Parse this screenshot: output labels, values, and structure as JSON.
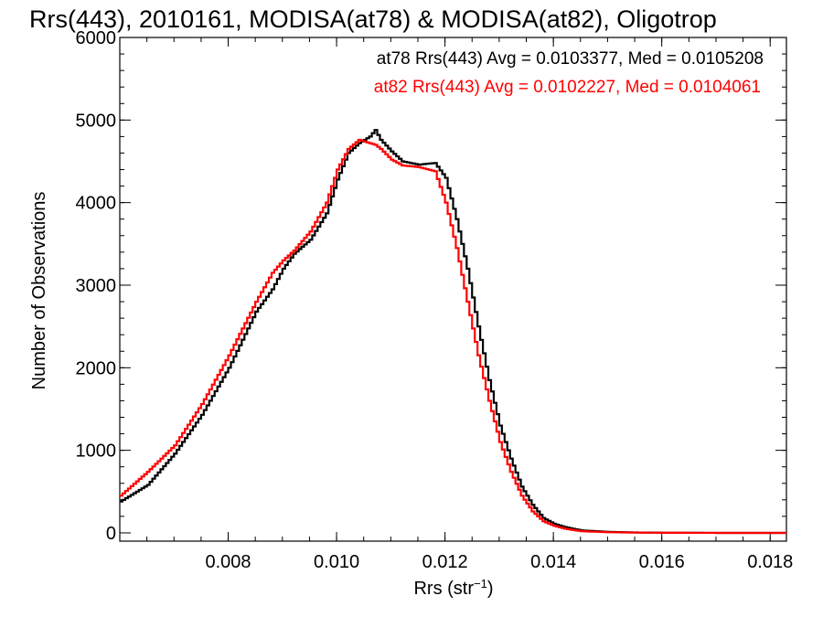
{
  "chart_data": {
    "type": "line",
    "title": "Rrs(443), 2010161, MODISA(at78) & MODISA(at82), Oligotrop",
    "xlabel": "Rrs (str",
    "xlabel_sup": "−1",
    "xlabel_close": ")",
    "ylabel": "Number of Observations",
    "xlim": [
      0.006,
      0.0183
    ],
    "ylim": [
      -100,
      6000
    ],
    "x_ticks": [
      0.008,
      0.01,
      0.012,
      0.014,
      0.016,
      0.018
    ],
    "x_tick_labels": [
      "0.008",
      "0.010",
      "0.012",
      "0.014",
      "0.016",
      "0.018"
    ],
    "y_ticks": [
      0,
      1000,
      2000,
      3000,
      4000,
      5000,
      6000
    ],
    "y_tick_labels": [
      "0",
      "1000",
      "2000",
      "3000",
      "4000",
      "5000",
      "6000"
    ],
    "grid": false,
    "legend_placement": "top-right",
    "annotations": [
      "at78 Rrs(443) Avg = 0.0103377, Med = 0.0105208",
      "at82 Rrs(443) Avg = 0.0102227, Med = 0.0104061"
    ],
    "series": [
      {
        "color": "#000000",
        "x": [
          0.006,
          0.0065,
          0.007,
          0.0075,
          0.008,
          0.0085,
          0.0088,
          0.009,
          0.0092,
          0.0095,
          0.0098,
          0.01,
          0.0102,
          0.0104,
          0.0106,
          0.0107,
          0.0108,
          0.011,
          0.0112,
          0.0115,
          0.0118,
          0.012,
          0.0122,
          0.0124,
          0.0126,
          0.0128,
          0.013,
          0.0132,
          0.0134,
          0.0136,
          0.0138,
          0.014,
          0.0142,
          0.0145,
          0.015,
          0.0155,
          0.016,
          0.017,
          0.018,
          0.0183
        ],
        "y": [
          380,
          580,
          960,
          1430,
          2000,
          2680,
          2950,
          3200,
          3380,
          3550,
          3870,
          4280,
          4600,
          4720,
          4800,
          4880,
          4760,
          4620,
          4500,
          4460,
          4480,
          4300,
          3800,
          3200,
          2500,
          1850,
          1300,
          900,
          560,
          340,
          180,
          110,
          70,
          30,
          12,
          5,
          2,
          0,
          0,
          0
        ]
      },
      {
        "color": "#ff0000",
        "x": [
          0.006,
          0.0065,
          0.007,
          0.0075,
          0.008,
          0.0085,
          0.0088,
          0.009,
          0.0092,
          0.0095,
          0.0098,
          0.01,
          0.0102,
          0.0104,
          0.0106,
          0.0107,
          0.0108,
          0.011,
          0.0112,
          0.0115,
          0.0118,
          0.012,
          0.0122,
          0.0124,
          0.0126,
          0.0128,
          0.013,
          0.0132,
          0.0134,
          0.0136,
          0.0138,
          0.014,
          0.0142,
          0.0145,
          0.015,
          0.0155,
          0.016,
          0.017,
          0.018,
          0.0183
        ],
        "y": [
          450,
          740,
          1060,
          1560,
          2150,
          2800,
          3150,
          3300,
          3420,
          3650,
          4000,
          4400,
          4650,
          4760,
          4720,
          4700,
          4650,
          4520,
          4450,
          4430,
          4380,
          4000,
          3450,
          2800,
          2150,
          1600,
          1100,
          740,
          450,
          260,
          140,
          85,
          50,
          20,
          8,
          3,
          1,
          0,
          0,
          0
        ]
      }
    ]
  }
}
